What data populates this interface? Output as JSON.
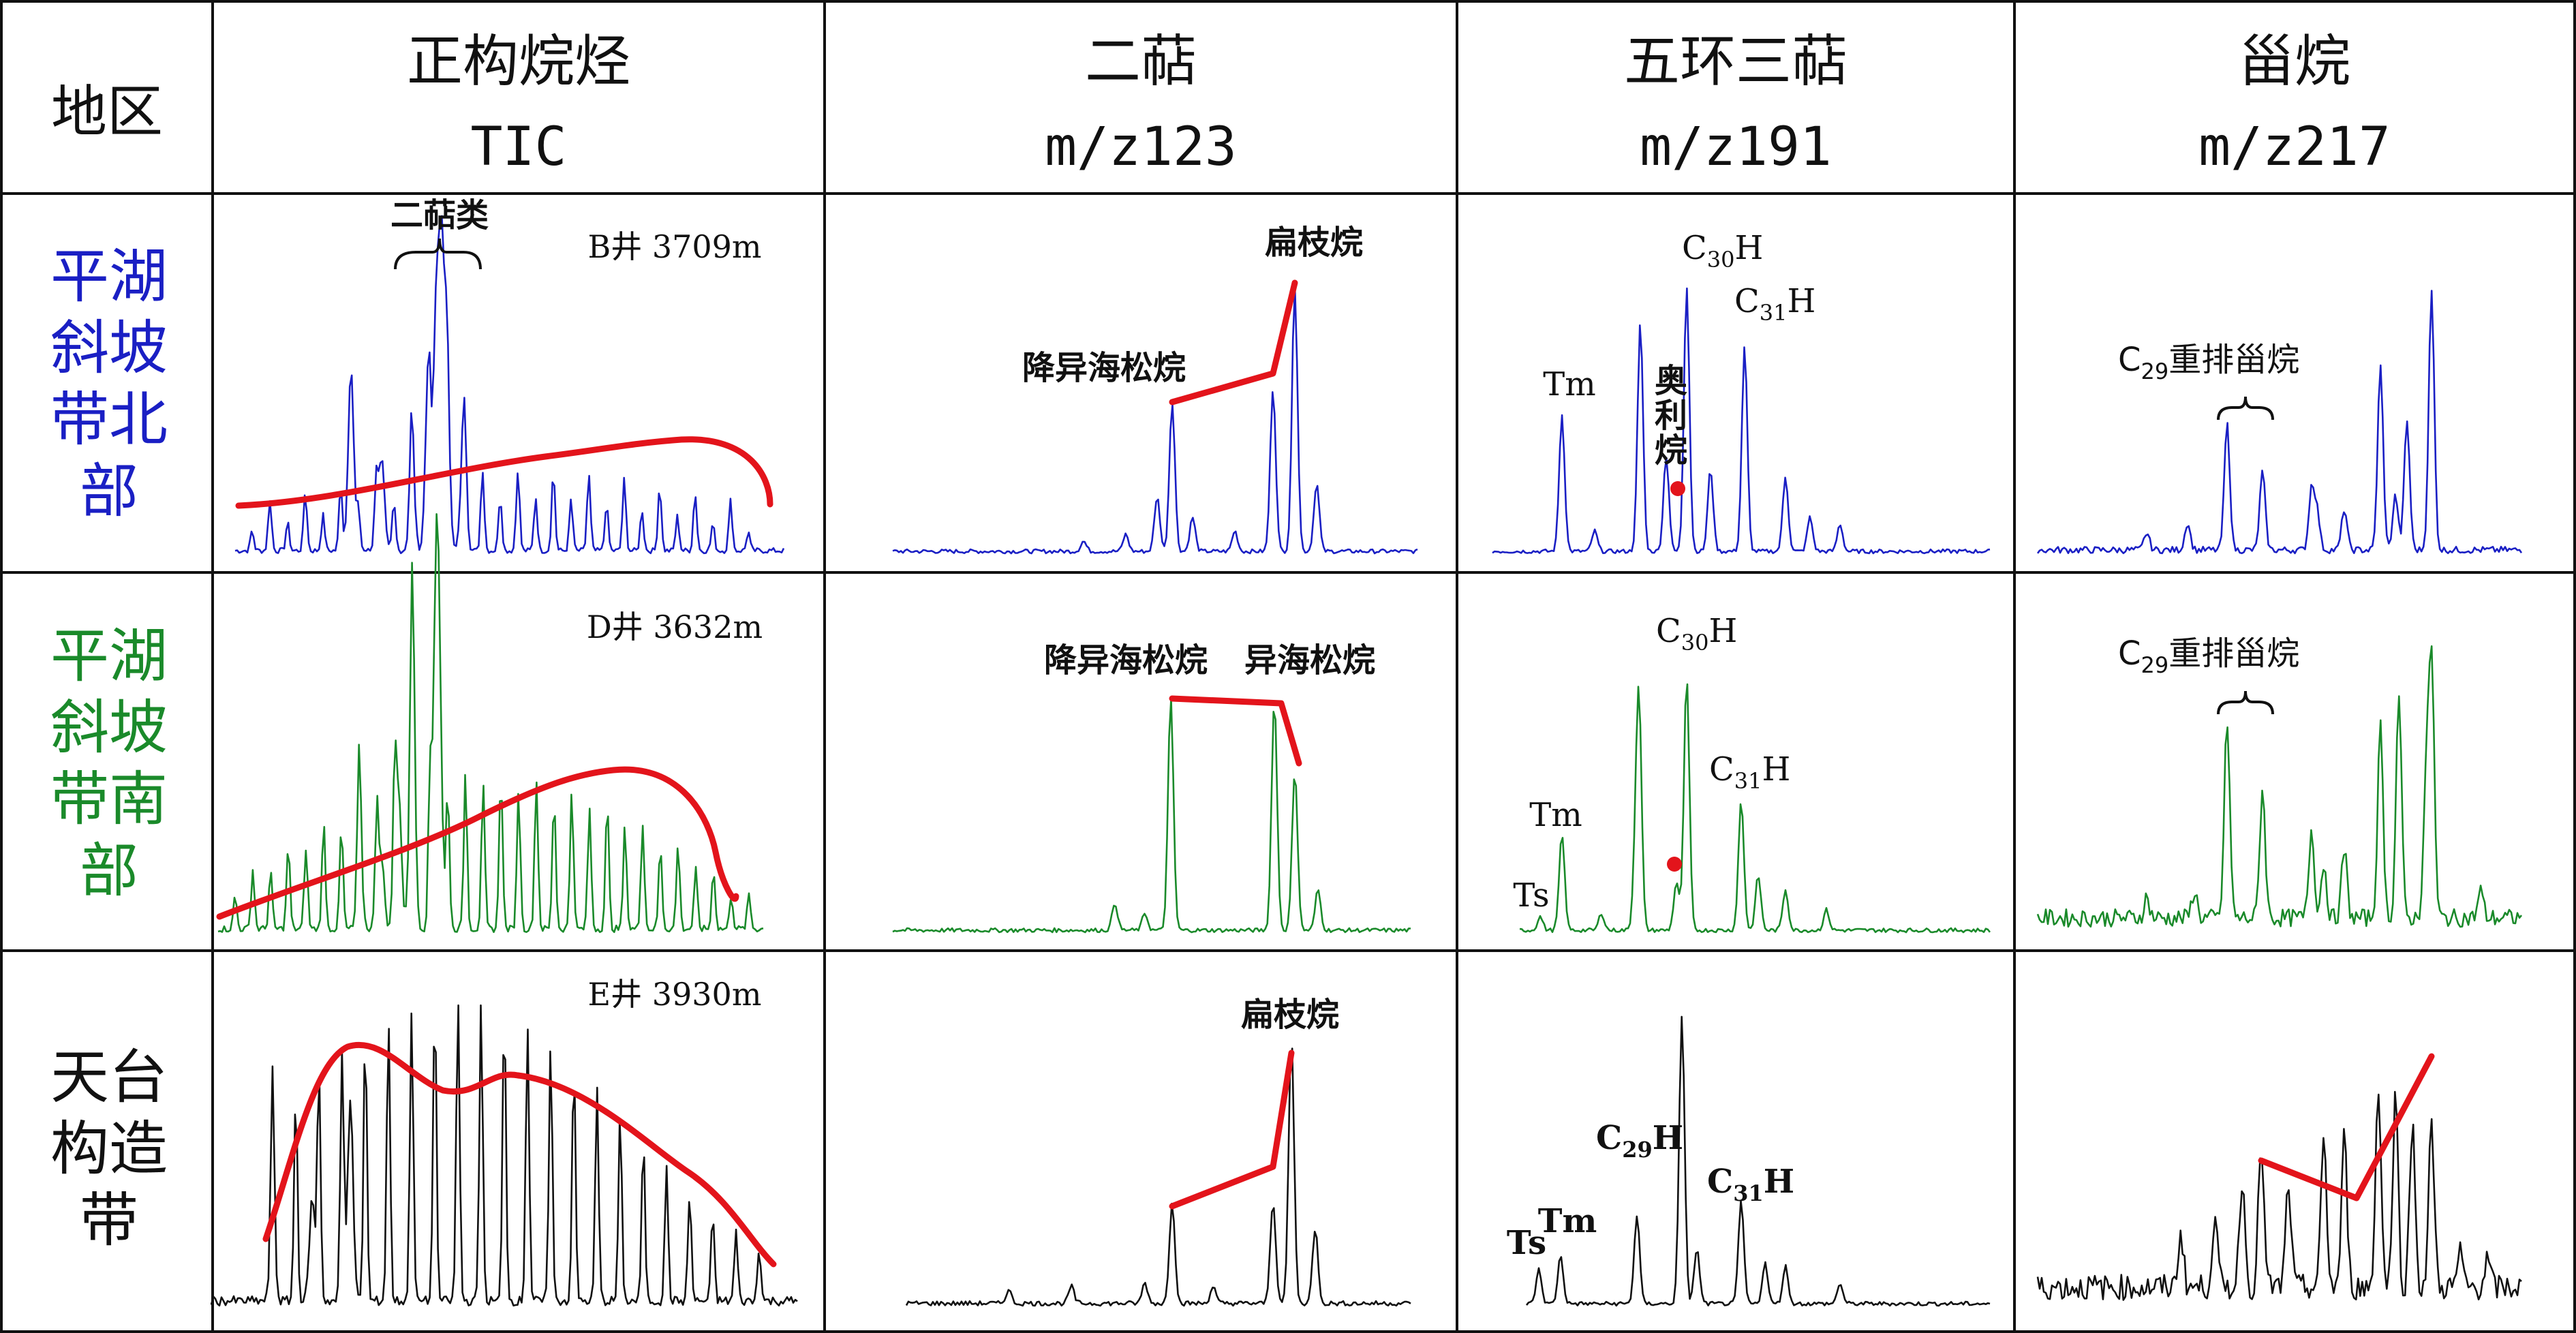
{
  "header": {
    "region_col": "地区",
    "columns": [
      {
        "title": "正构烷烃",
        "sub": "TIC"
      },
      {
        "title": "二萜",
        "sub": "m/z123"
      },
      {
        "title": "五环三萜",
        "sub": "m/z191"
      },
      {
        "title": "甾烷",
        "sub": "m/z217"
      }
    ]
  },
  "rows": [
    {
      "region_lines": [
        "平湖",
        "斜坡",
        "带北",
        "部"
      ],
      "color": "#1a1fc4",
      "well": "B井 3709m",
      "tic_label": "二萜类",
      "diterp_labels": [
        "扁枝烷",
        "降异海松烷"
      ],
      "hopane_labels": [
        "Tm",
        "奥",
        "利",
        "烷"
      ],
      "sterane_label": "重排甾烷"
    },
    {
      "region_lines": [
        "平湖",
        "斜坡",
        "带南",
        "部"
      ],
      "color": "#1a8a2a",
      "well": "D井 3632m",
      "diterp_labels": [
        "降异海松烷",
        "异海松烷"
      ],
      "hopane_labels": [
        "Tm",
        "Ts"
      ],
      "sterane_label": "重排甾烷"
    },
    {
      "region_lines": [
        "天台",
        "构造",
        "带"
      ],
      "color": "#111111",
      "well": "E井 3930m",
      "diterp_labels": [
        "扁枝烷"
      ],
      "hopane_labels": [
        "Tm",
        "Ts"
      ]
    }
  ],
  "formula": {
    "C": "C",
    "H": "H",
    "n29": "29",
    "n30": "30",
    "n31": "31"
  },
  "colors": {
    "envelope": "#e3141b",
    "marker": "#e3141b"
  }
}
